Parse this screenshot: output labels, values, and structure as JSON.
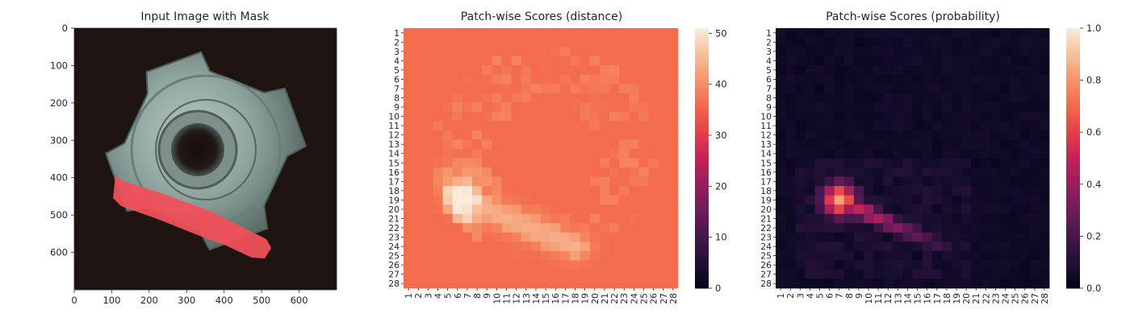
{
  "chart_data": [
    {
      "type": "image",
      "title": "Input Image with Mask",
      "x_ticks": [
        "0",
        "100",
        "200",
        "300",
        "400",
        "500",
        "600"
      ],
      "y_ticks": [
        "0",
        "100",
        "200",
        "300",
        "400",
        "500",
        "600"
      ],
      "xlim": [
        0,
        700
      ],
      "ylim": [
        700,
        0
      ],
      "mask_color": "#f0505a",
      "background_color": "#1e1412"
    },
    {
      "type": "heatmap",
      "title": "Patch-wise Scores (distance)",
      "rows": 28,
      "cols": 28,
      "row_labels": [
        "1",
        "2",
        "3",
        "4",
        "5",
        "6",
        "7",
        "8",
        "9",
        "10",
        "11",
        "12",
        "13",
        "14",
        "15",
        "16",
        "17",
        "18",
        "19",
        "20",
        "21",
        "22",
        "23",
        "24",
        "25",
        "26",
        "27",
        "28"
      ],
      "col_labels": [
        "1",
        "2",
        "3",
        "4",
        "5",
        "6",
        "7",
        "8",
        "9",
        "10",
        "11",
        "12",
        "13",
        "14",
        "15",
        "16",
        "17",
        "18",
        "19",
        "20",
        "21",
        "22",
        "23",
        "24",
        "25",
        "26",
        "27",
        "28"
      ],
      "vmin": 0,
      "vmax": 51,
      "colorbar_ticks": [
        "0",
        "10",
        "20",
        "30",
        "40",
        "50"
      ],
      "colormap": "rocket",
      "estimated": {
        "background_level": 30,
        "hotspot_center": [
          19,
          6.5
        ],
        "hotspot_peak": 51,
        "ring_level": 35,
        "edge_level": 24
      }
    },
    {
      "type": "heatmap",
      "title": "Patch-wise Scores (probability)",
      "rows": 28,
      "cols": 28,
      "row_labels": [
        "1",
        "2",
        "3",
        "4",
        "5",
        "6",
        "7",
        "8",
        "9",
        "10",
        "11",
        "12",
        "13",
        "14",
        "15",
        "16",
        "17",
        "18",
        "19",
        "20",
        "21",
        "22",
        "23",
        "24",
        "25",
        "26",
        "27",
        "28"
      ],
      "col_labels": [
        "1",
        "2",
        "3",
        "4",
        "5",
        "6",
        "7",
        "8",
        "9",
        "10",
        "11",
        "12",
        "13",
        "14",
        "15",
        "16",
        "17",
        "18",
        "19",
        "20",
        "21",
        "22",
        "23",
        "24",
        "25",
        "26",
        "27",
        "28"
      ],
      "vmin": 0,
      "vmax": 1,
      "colorbar_ticks": [
        "0.0",
        "0.2",
        "0.4",
        "0.6",
        "0.8",
        "1.0"
      ],
      "colormap": "rocket",
      "estimated": {
        "background_level": 0.02,
        "hotspot_center": [
          19,
          7
        ],
        "hotspot_peak": 0.78,
        "streak_end": [
          24,
          17
        ]
      }
    }
  ]
}
